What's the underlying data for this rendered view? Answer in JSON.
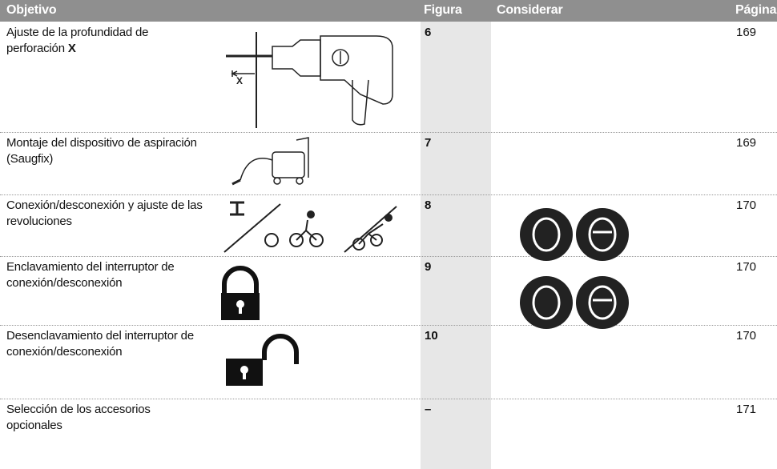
{
  "header": {
    "objective": "Objetivo",
    "figure": "Figura",
    "consider": "Considerar",
    "page": "Página"
  },
  "rows": [
    {
      "objective": "Ajuste de la profundidad de perforación",
      "objective_bold": "X",
      "figure": "6",
      "page": "169"
    },
    {
      "objective": "Montaje del dispositivo de aspiración (Saugfix)",
      "figure": "7",
      "page": "169"
    },
    {
      "objective": "Conexión/desconexión y ajuste de las revoluciones",
      "figure": "8",
      "page": "170"
    },
    {
      "objective": "Enclavamiento del interruptor de conexión/desconexión",
      "figure": "9",
      "page": "170"
    },
    {
      "objective": "Desenclavamiento del interruptor de conexión/desconexión",
      "figure": "10",
      "page": "170"
    },
    {
      "objective": "Selección de los accesorios opcionales",
      "figure": "–",
      "page": "171"
    }
  ]
}
